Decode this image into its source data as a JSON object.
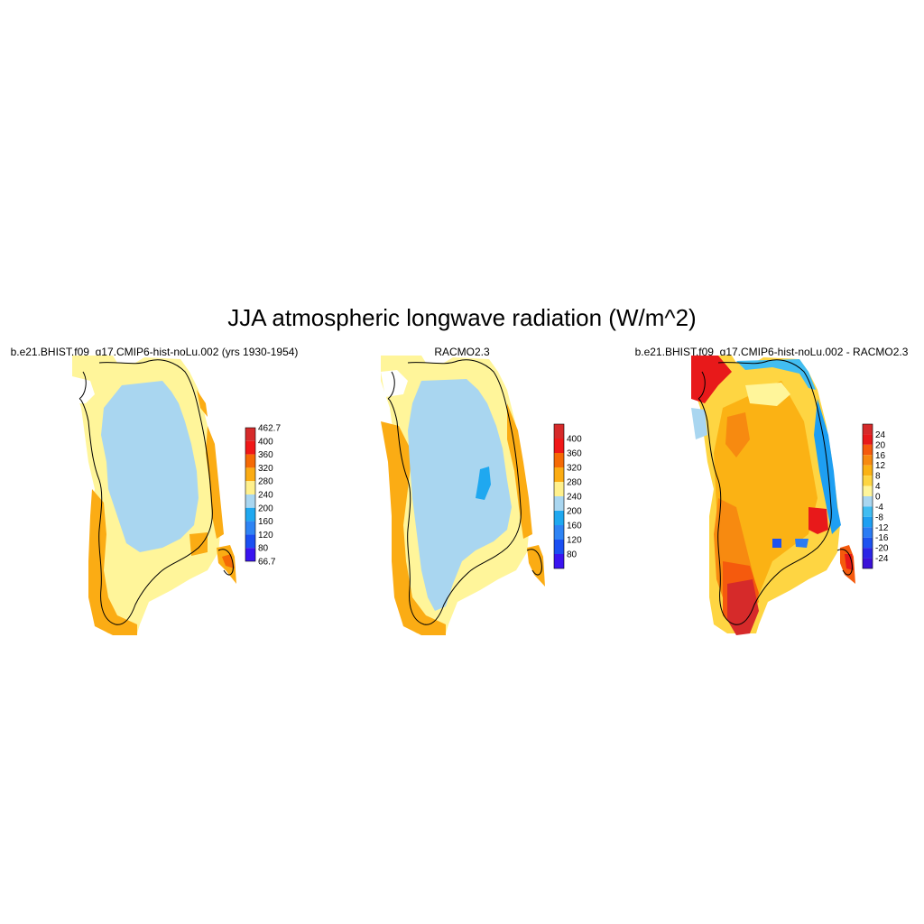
{
  "title": "JJA atmospheric longwave radiation (W/m^2)",
  "panels": [
    {
      "title": "b.e21.BHIST.f09_g17.CMIP6-hist-noLu.002 (yrs 1930-1954)"
    },
    {
      "title": "RACMO2.3"
    },
    {
      "title": "b.e21.BHIST.f09_g17.CMIP6-hist-noLu.002 - RACMO2.3"
    }
  ],
  "colorbars": {
    "absolute_model": {
      "labels": [
        "462.7",
        "400",
        "360",
        "320",
        "280",
        "240",
        "200",
        "160",
        "120",
        "80",
        "66.7"
      ],
      "colors": [
        "#d62a2a",
        "#f01818",
        "#f56a05",
        "#fbac14",
        "#fff08c",
        "#a9d6f0",
        "#1fa8f0",
        "#2f84f4",
        "#1b4ff2",
        "#3a14f0"
      ]
    },
    "absolute_racmo": {
      "labels": [
        "400",
        "360",
        "320",
        "280",
        "240",
        "200",
        "160",
        "120",
        "80"
      ],
      "colors": [
        "#d62a2a",
        "#f01818",
        "#f56a05",
        "#fbac14",
        "#fff08c",
        "#a9d6f0",
        "#1fa8f0",
        "#2f84f4",
        "#1b4ff2",
        "#3a14f0"
      ]
    },
    "difference": {
      "labels": [
        "24",
        "20",
        "16",
        "12",
        "8",
        "4",
        "0",
        "-4",
        "-8",
        "-12",
        "-16",
        "-20",
        "-24"
      ],
      "colors": [
        "#d62a2a",
        "#e8191a",
        "#f55a0d",
        "#f78a10",
        "#fbb214",
        "#fed542",
        "#fff59a",
        "#a9d6f0",
        "#41bdf2",
        "#1e9ff2",
        "#2a7cf4",
        "#1d52f0",
        "#2a25e6",
        "#3a10d8"
      ]
    }
  },
  "palette": {
    "land_cream": "#fff59a",
    "ice_blue": "#a9d6f0",
    "orange": "#fbac14",
    "dark_orange": "#f56a05",
    "red": "#e8191a",
    "yellow_orange": "#fed542"
  }
}
